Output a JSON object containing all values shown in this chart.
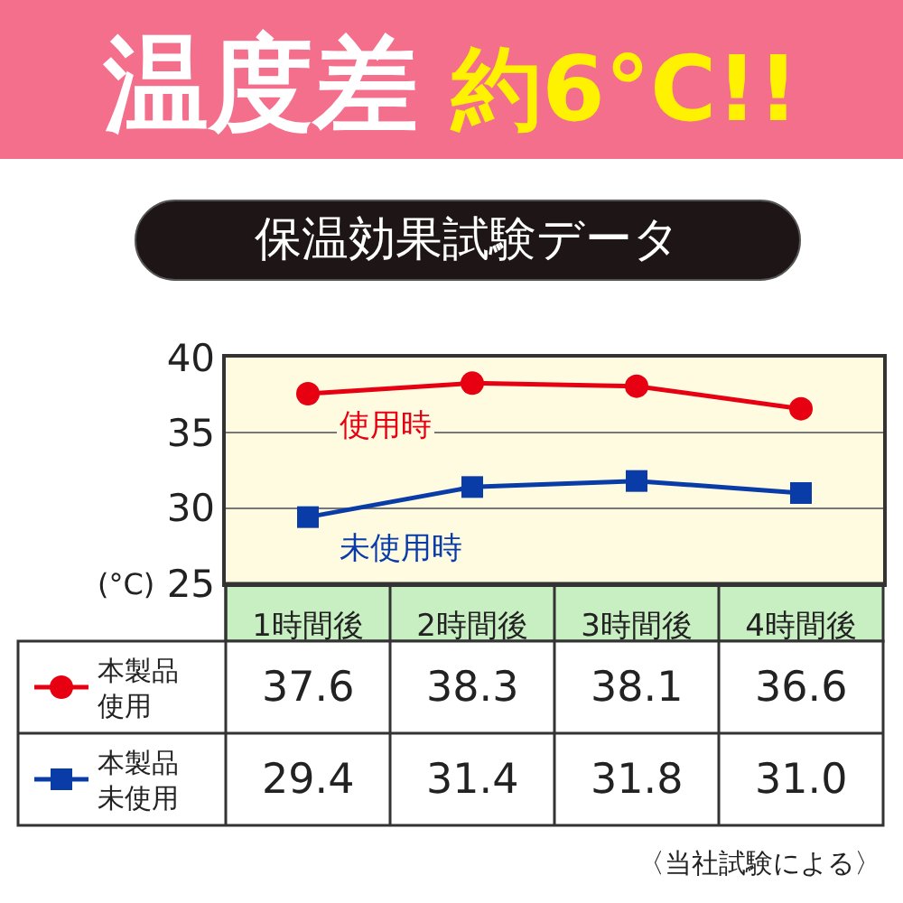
{
  "chart_data": {
    "type": "line",
    "title": "温度差 約6°C!!",
    "subtitle": "保温効果試験データ",
    "ylabel": "(°C)",
    "categories": [
      "1時間後",
      "2時間後",
      "3時間後",
      "4時間後"
    ],
    "series": [
      {
        "name": "本製品使用",
        "color": "#e60012",
        "marker": "circle",
        "values": [
          37.6,
          38.3,
          38.1,
          36.6
        ],
        "value_labels": [
          "37.6",
          "38.3",
          "38.1",
          "36.6"
        ]
      },
      {
        "name": "本製品未使用",
        "color": "#0a3ca8",
        "marker": "square",
        "values": [
          29.4,
          31.4,
          31.8,
          31.0
        ],
        "value_labels": [
          "29.4",
          "31.4",
          "31.8",
          "31.0"
        ]
      }
    ],
    "ylim": [
      25,
      40
    ],
    "yticks": [
      25,
      30,
      35,
      40
    ],
    "grid": "y",
    "legend": "bottom left",
    "annotations": [
      {
        "text": "使用時",
        "x": "1時間後",
        "y": 37.6
      },
      {
        "text": "未使用時",
        "x": "1時間後",
        "y": 29.4
      },
      "〈当社試験による〉"
    ]
  }
}
